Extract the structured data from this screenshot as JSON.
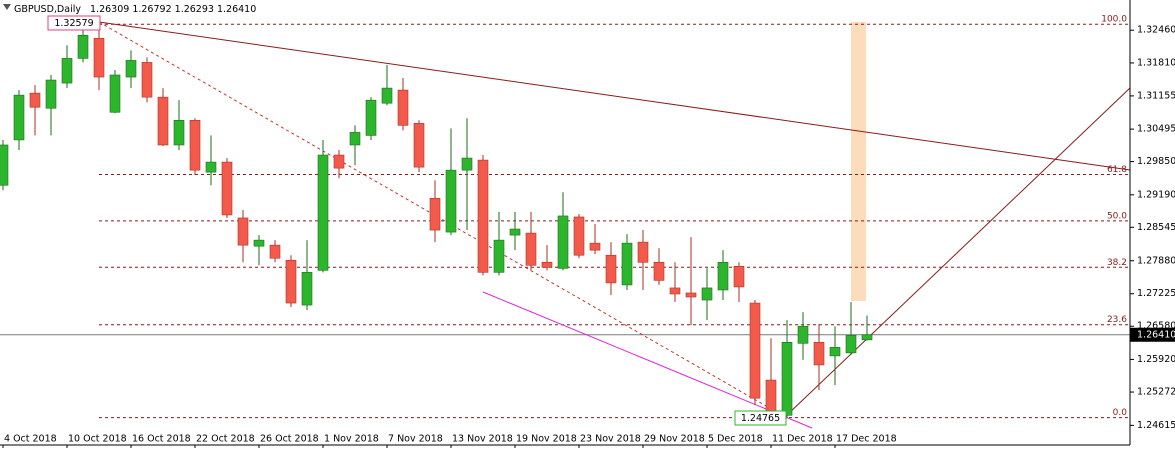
{
  "chart_data": {
    "type": "candlestick",
    "title": "GBPUSD,Daily",
    "header_values": [
      "1.26309",
      "1.26792",
      "1.26293",
      "1.26410"
    ],
    "categories": [
      "4 Oct 2018",
      null,
      null,
      null,
      "10 Oct 2018",
      null,
      null,
      null,
      "16 Oct 2018",
      null,
      null,
      null,
      "22 Oct 2018",
      null,
      null,
      null,
      "26 Oct 2018",
      null,
      null,
      null,
      "1 Nov 2018",
      null,
      null,
      null,
      "7 Nov 2018",
      null,
      null,
      null,
      "13 Nov 2018",
      null,
      null,
      null,
      "19 Nov 2018",
      null,
      null,
      null,
      "23 Nov 2018",
      null,
      null,
      null,
      "29 Nov 2018",
      null,
      null,
      null,
      "5 Dec 2018",
      null,
      null,
      null,
      "11 Dec 2018",
      null,
      null,
      null,
      "17 Dec 2018",
      null,
      null
    ],
    "open": [
      1.2938,
      1.3028,
      1.3121,
      1.3091,
      1.3141,
      1.319,
      1.323,
      1.3083,
      1.3153,
      1.3182,
      1.3113,
      1.3018,
      1.3067,
      1.2964,
      1.2984,
      1.2873,
      1.2817,
      1.2819,
      1.2789,
      1.27,
      1.2769,
      1.2998,
      1.3018,
      1.3037,
      1.3101,
      1.3127,
      1.3061,
      1.2912,
      1.2845,
      1.2968,
      1.2988,
      1.2765,
      1.2839,
      1.2843,
      1.2785,
      1.2773,
      1.2875,
      1.2823,
      1.2799,
      1.274,
      1.2825,
      1.2785,
      1.2734,
      1.2724,
      1.271,
      1.273,
      1.2777,
      1.2704,
      1.2551,
      1.2481,
      1.2624,
      1.2626,
      1.2599,
      1.2605,
      1.26309
    ],
    "high": [
      1.3028,
      1.3127,
      1.3137,
      1.3157,
      1.3216,
      1.3246,
      1.32579,
      1.3167,
      1.3206,
      1.3192,
      1.3131,
      1.3107,
      1.3071,
      1.3037,
      1.2992,
      1.2889,
      1.2839,
      1.2829,
      1.2799,
      1.2829,
      1.3028,
      1.3008,
      1.3057,
      1.3113,
      1.3177,
      1.3151,
      1.3067,
      1.2948,
      1.3051,
      1.3071,
      1.2998,
      1.2885,
      1.2885,
      1.2885,
      1.2819,
      1.2924,
      1.2881,
      1.2861,
      1.2825,
      1.2841,
      1.2849,
      1.2813,
      1.2785,
      1.2835,
      1.2773,
      1.2809,
      1.2785,
      1.271,
      1.2634,
      1.267,
      1.2686,
      1.2662,
      1.2658,
      1.2706,
      1.26792
    ],
    "low": [
      1.2928,
      1.3008,
      1.3037,
      1.3037,
      1.3131,
      1.3182,
      1.3127,
      1.3081,
      1.3131,
      1.3103,
      1.3016,
      1.3008,
      1.2958,
      1.2938,
      1.2873,
      1.2785,
      1.2779,
      1.2785,
      1.2696,
      1.269,
      1.2765,
      1.2952,
      1.2978,
      1.3028,
      1.3097,
      1.3047,
      1.2964,
      1.2825,
      1.2839,
      1.2849,
      1.2759,
      1.2759,
      1.2809,
      1.2769,
      1.2769,
      1.2769,
      1.2793,
      1.2801,
      1.272,
      1.273,
      1.273,
      1.274,
      1.2706,
      1.266,
      1.267,
      1.271,
      1.2706,
      1.2501,
      1.2475,
      1.24765,
      1.2591,
      1.2531,
      1.2541,
      1.2601,
      1.26293
    ],
    "close": [
      1.3018,
      1.3117,
      1.3093,
      1.3147,
      1.319,
      1.3236,
      1.3153,
      1.3157,
      1.3186,
      1.3113,
      1.3018,
      1.3067,
      1.2968,
      1.2984,
      1.2879,
      1.2819,
      1.2829,
      1.2793,
      1.2704,
      1.2765,
      1.2998,
      1.2972,
      1.3043,
      1.3107,
      1.3131,
      1.3057,
      1.2974,
      1.2849,
      1.2968,
      1.2992,
      1.2765,
      1.2829,
      1.2851,
      1.2779,
      1.2775,
      1.2877,
      1.2799,
      1.2809,
      1.2744,
      1.2823,
      1.2785,
      1.2749,
      1.2722,
      1.2716,
      1.2734,
      1.2785,
      1.2736,
      1.2515,
      1.2481,
      1.2626,
      1.2658,
      1.2581,
      1.2616,
      1.264,
      1.2641
    ],
    "up_color": "#2db52d",
    "down_color": "#f25a4c",
    "ylim": [
      1.2422,
      1.3306
    ],
    "yticks": [
      {
        "value": 1.2461,
        "label": "1.24615"
      },
      1.25272,
      {
        "value": 1.2592,
        "label": "1.25920"
      },
      {
        "value": 1.2658,
        "label": "1.26580"
      },
      1.27225,
      {
        "value": 1.2788,
        "label": "1.27880"
      },
      1.28545,
      {
        "value": 1.2919,
        "label": "1.29190"
      },
      {
        "value": 1.2985,
        "label": "1.29850"
      },
      1.30495,
      1.31155,
      {
        "value": 1.3181,
        "label": "1.31810"
      },
      {
        "value": 1.3246,
        "label": "1.32460"
      }
    ],
    "fib_levels": [
      {
        "label": "100.0",
        "value": 1.32579
      },
      {
        "label": "61.8",
        "value": 1.29594
      },
      {
        "label": "50.0",
        "value": 1.28672
      },
      {
        "label": "38.2",
        "value": 1.2775
      },
      {
        "label": "23.6",
        "value": 1.26609
      },
      {
        "label": "0.0",
        "value": 1.24765
      }
    ],
    "grid": false
  }
}
